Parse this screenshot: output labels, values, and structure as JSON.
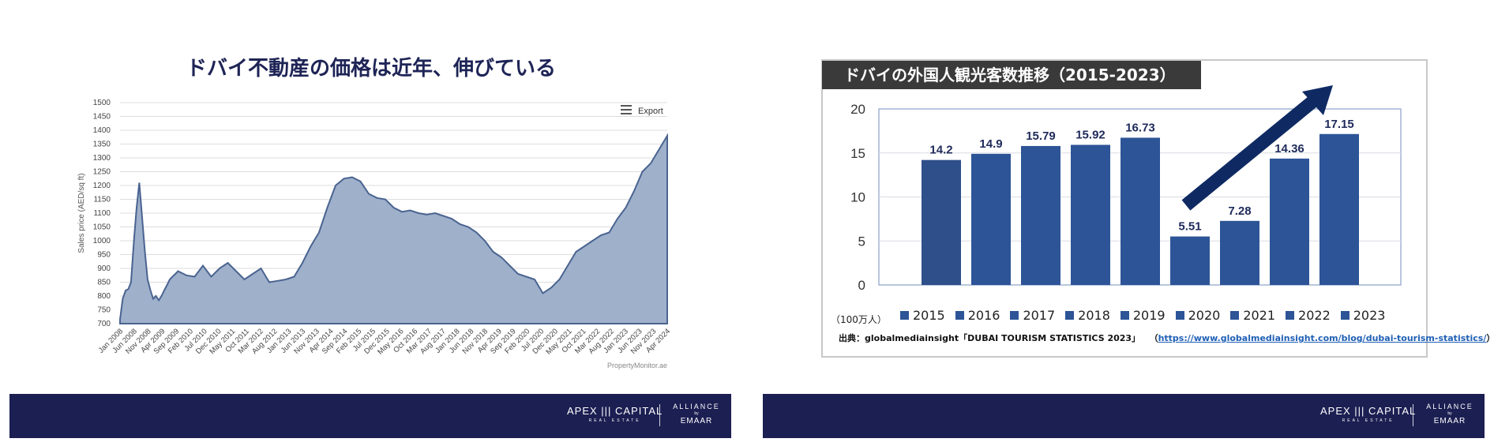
{
  "left": {
    "title": "ドバイ不動産の価格は近年、伸びている",
    "export_label": "Export",
    "watermark": "PropertyMonitor.ae"
  },
  "right": {
    "title": "ドバイの外国人観光客数推移（2015-2023）",
    "unit": "（100万人）",
    "source_prefix": "出典：globalmediainsight「DUBAI TOURISM STATISTICS 2023」",
    "source_link": "https://www.globalmediainsight.com/blog/dubai-tourism-statistics/",
    "source_paren_open": "（",
    "source_paren_close": "）"
  },
  "footer": {
    "brand_main": "APEX ||| CAPITAL",
    "brand_sub": "REAL ESTATE",
    "alliance": "ALLIANCE",
    "by": "by",
    "emaar": "EMAAR"
  },
  "colors": {
    "navy": "#1c1f52",
    "area_fill": "#9fb0cb",
    "area_line": "#4a6490",
    "bar": "#2d5497",
    "arrow": "#0f2a63"
  },
  "chart_data": [
    {
      "type": "area",
      "ylabel": "Sales price (AED/sq ft)",
      "ylim": [
        700,
        1500
      ],
      "yticks": [
        700,
        750,
        800,
        850,
        900,
        950,
        1000,
        1050,
        1100,
        1150,
        1200,
        1250,
        1300,
        1350,
        1400,
        1450,
        1500
      ],
      "xticks": [
        "Jan 2008",
        "Jun 2008",
        "Nov 2008",
        "Apr 2009",
        "Sep 2009",
        "Feb 2010",
        "Jul 2010",
        "Dec 2010",
        "May 2011",
        "Oct 2011",
        "Mar 2012",
        "Aug 2012",
        "Jan 2013",
        "Jun 2013",
        "Nov 2013",
        "Apr 2014",
        "Sep 2014",
        "Feb 2015",
        "Jul 2015",
        "Dec 2015",
        "May 2016",
        "Oct 2016",
        "Mar 2017",
        "Aug 2017",
        "Jan 2018",
        "Jun 2018",
        "Nov 2018",
        "Apr 2019",
        "Sep 2019",
        "Feb 2020",
        "Jul 2020",
        "Dec 2020",
        "May 2021",
        "Oct 2021",
        "Mar 2022",
        "Aug 2022",
        "Jan 2023",
        "Jun 2023",
        "Nov 2023",
        "Apr 2024"
      ],
      "x": [
        2008.0,
        2008.08,
        2008.17,
        2008.25,
        2008.33,
        2008.42,
        2008.5,
        2008.58,
        2008.67,
        2008.75,
        2008.83,
        2008.92,
        2009.0,
        2009.08,
        2009.17,
        2009.25,
        2009.33,
        2009.42,
        2009.5,
        2009.58,
        2009.67,
        2009.75,
        2009.83,
        2009.92,
        2010.0,
        2010.25,
        2010.5,
        2010.75,
        2011.0,
        2011.25,
        2011.5,
        2011.75,
        2012.0,
        2012.25,
        2012.5,
        2012.75,
        2013.0,
        2013.25,
        2013.5,
        2013.75,
        2014.0,
        2014.25,
        2014.5,
        2014.75,
        2015.0,
        2015.25,
        2015.5,
        2015.75,
        2016.0,
        2016.25,
        2016.5,
        2016.75,
        2017.0,
        2017.25,
        2017.5,
        2017.75,
        2018.0,
        2018.25,
        2018.5,
        2018.75,
        2019.0,
        2019.25,
        2019.5,
        2019.75,
        2020.0,
        2020.25,
        2020.5,
        2020.75,
        2021.0,
        2021.25,
        2021.5,
        2021.75,
        2022.0,
        2022.25,
        2022.5,
        2022.75,
        2023.0,
        2023.25,
        2023.5,
        2023.75,
        2024.0,
        2024.25,
        2024.5
      ],
      "y": [
        715,
        790,
        820,
        825,
        850,
        1000,
        1120,
        1210,
        1080,
        960,
        860,
        820,
        790,
        800,
        785,
        800,
        820,
        840,
        860,
        870,
        880,
        890,
        885,
        880,
        875,
        870,
        910,
        870,
        900,
        920,
        890,
        860,
        880,
        900,
        850,
        855,
        860,
        870,
        920,
        980,
        1030,
        1120,
        1200,
        1225,
        1230,
        1215,
        1170,
        1155,
        1150,
        1120,
        1105,
        1110,
        1100,
        1095,
        1100,
        1090,
        1080,
        1060,
        1050,
        1030,
        1000,
        960,
        940,
        910,
        880,
        870,
        860,
        810,
        830,
        860,
        910,
        960,
        980,
        1000,
        1020,
        1030,
        1080,
        1120,
        1180,
        1250,
        1280,
        1330,
        1380
      ]
    },
    {
      "type": "bar",
      "categories": [
        "2015",
        "2016",
        "2017",
        "2018",
        "2019",
        "2020",
        "2021",
        "2022",
        "2023"
      ],
      "values": [
        14.2,
        14.9,
        15.79,
        15.92,
        16.73,
        5.51,
        7.28,
        14.36,
        17.15
      ],
      "ylim": [
        0,
        20
      ],
      "yticks": [
        0,
        5,
        10,
        15,
        20
      ],
      "legend": [
        "2015",
        "2016",
        "2017",
        "2018",
        "2019",
        "2020",
        "2021",
        "2022",
        "2023"
      ]
    }
  ]
}
